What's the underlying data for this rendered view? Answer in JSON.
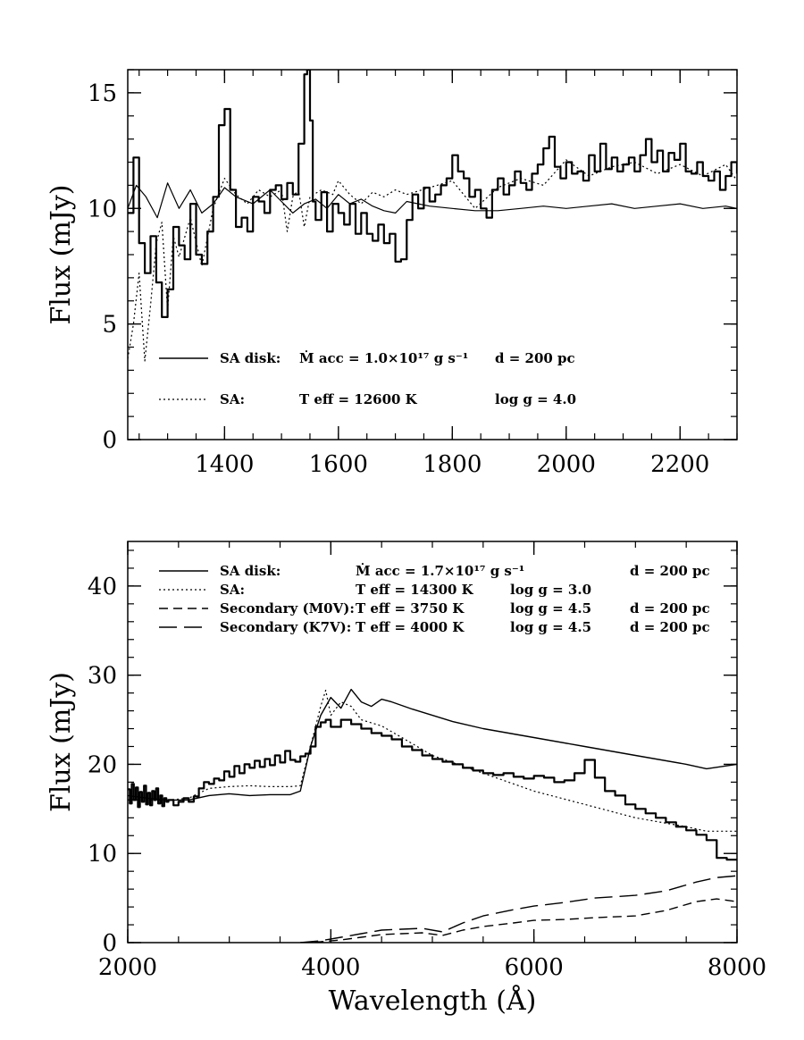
{
  "chart_data": [
    {
      "type": "line",
      "title": "",
      "xlabel": "",
      "ylabel": "Flux (mJy)",
      "xlim": [
        1230,
        2300
      ],
      "ylim": [
        0,
        16
      ],
      "x_ticks": [
        1400,
        1600,
        1800,
        2000,
        2200
      ],
      "y_ticks": [
        0,
        5,
        10,
        15
      ],
      "legend": [
        {
          "line": "solid",
          "label": "SA disk:",
          "param1": "Ṁ acc = 1.0×10¹⁷ g s⁻¹",
          "param2": "d = 200 pc"
        },
        {
          "line": "dotted",
          "label": "SA:",
          "param1": "T eff = 12600 K",
          "param2": "log g = 4.0"
        }
      ],
      "series": [
        {
          "name": "SA disk",
          "style": "solid-smooth",
          "x": [
            1230,
            1245,
            1262,
            1282,
            1300,
            1320,
            1340,
            1360,
            1380,
            1400,
            1420,
            1450,
            1480,
            1500,
            1520,
            1540,
            1560,
            1580,
            1600,
            1620,
            1640,
            1660,
            1680,
            1700,
            1720,
            1760,
            1800,
            1840,
            1880,
            1920,
            1960,
            2000,
            2040,
            2080,
            2120,
            2160,
            2200,
            2240,
            2280,
            2300
          ],
          "y": [
            10.0,
            11.0,
            10.5,
            9.6,
            11.1,
            10.0,
            10.8,
            9.8,
            10.2,
            10.9,
            10.5,
            10.2,
            10.8,
            10.3,
            9.8,
            10.2,
            10.4,
            10.0,
            10.6,
            10.2,
            10.4,
            10.1,
            9.9,
            9.8,
            10.3,
            10.1,
            10.0,
            9.9,
            9.9,
            10.0,
            10.1,
            10.0,
            10.1,
            10.2,
            10.0,
            10.1,
            10.2,
            10.0,
            10.1,
            10.0
          ]
        },
        {
          "name": "SA",
          "style": "dotted",
          "x": [
            1230,
            1240,
            1250,
            1260,
            1270,
            1280,
            1290,
            1300,
            1310,
            1320,
            1340,
            1360,
            1380,
            1400,
            1420,
            1440,
            1460,
            1480,
            1500,
            1510,
            1520,
            1530,
            1540,
            1550,
            1570,
            1590,
            1600,
            1620,
            1640,
            1660,
            1680,
            1700,
            1720,
            1760,
            1800,
            1840,
            1880,
            1920,
            1960,
            2000,
            2040,
            2080,
            2120,
            2160,
            2200,
            2240,
            2280,
            2300
          ],
          "y": [
            3.5,
            5.0,
            7.2,
            3.4,
            5.8,
            8.5,
            9.4,
            5.6,
            8.8,
            7.9,
            9.6,
            7.5,
            10.0,
            11.3,
            10.6,
            10.2,
            10.8,
            10.5,
            10.8,
            9.0,
            10.5,
            10.8,
            9.2,
            10.5,
            10.8,
            10.6,
            11.2,
            10.6,
            10.2,
            10.7,
            10.5,
            10.8,
            10.6,
            10.9,
            11.2,
            10.0,
            10.9,
            11.3,
            11.0,
            12.1,
            11.4,
            11.8,
            12.0,
            11.5,
            11.9,
            11.4,
            11.9,
            11.2
          ]
        },
        {
          "name": "",
          "style": "solid-step",
          "x": [
            1230,
            1240,
            1250,
            1260,
            1270,
            1280,
            1290,
            1300,
            1310,
            1320,
            1330,
            1340,
            1350,
            1360,
            1370,
            1380,
            1390,
            1400,
            1410,
            1420,
            1430,
            1440,
            1450,
            1460,
            1470,
            1480,
            1490,
            1500,
            1510,
            1520,
            1530,
            1540,
            1545,
            1550,
            1555,
            1560,
            1570,
            1580,
            1590,
            1600,
            1610,
            1620,
            1630,
            1640,
            1650,
            1660,
            1670,
            1680,
            1690,
            1700,
            1710,
            1720,
            1730,
            1740,
            1750,
            1760,
            1770,
            1780,
            1790,
            1800,
            1810,
            1820,
            1830,
            1840,
            1850,
            1860,
            1870,
            1880,
            1890,
            1900,
            1910,
            1920,
            1930,
            1940,
            1950,
            1960,
            1970,
            1980,
            1990,
            2000,
            2010,
            2020,
            2030,
            2040,
            2050,
            2060,
            2070,
            2080,
            2090,
            2100,
            2110,
            2120,
            2130,
            2140,
            2150,
            2160,
            2170,
            2180,
            2190,
            2200,
            2210,
            2220,
            2230,
            2240,
            2250,
            2260,
            2270,
            2280,
            2290,
            2300
          ],
          "y": [
            9.8,
            12.2,
            8.5,
            7.2,
            8.8,
            6.8,
            5.3,
            6.5,
            9.2,
            8.4,
            7.8,
            10.2,
            8.0,
            7.6,
            9.0,
            10.5,
            13.6,
            14.3,
            10.8,
            9.2,
            9.6,
            9.0,
            10.5,
            10.3,
            9.8,
            10.8,
            11.0,
            10.4,
            11.1,
            10.6,
            12.8,
            15.8,
            16.0,
            13.8,
            10.3,
            9.5,
            10.7,
            9.0,
            10.2,
            9.8,
            9.3,
            10.2,
            8.9,
            9.8,
            8.9,
            8.6,
            9.3,
            8.5,
            8.9,
            7.7,
            7.8,
            9.5,
            10.6,
            10.0,
            10.9,
            10.3,
            10.6,
            11.0,
            11.3,
            12.3,
            11.6,
            11.3,
            10.5,
            10.8,
            10.0,
            9.6,
            10.8,
            11.3,
            10.6,
            11.0,
            11.6,
            11.1,
            10.8,
            11.5,
            11.9,
            12.6,
            13.1,
            11.8,
            11.3,
            12.0,
            11.5,
            11.6,
            11.2,
            12.3,
            11.6,
            12.8,
            11.7,
            12.2,
            11.6,
            11.9,
            12.2,
            11.6,
            12.3,
            13.0,
            12.0,
            12.5,
            11.6,
            12.4,
            12.1,
            12.8,
            11.6,
            11.5,
            12.0,
            11.4,
            11.2,
            11.6,
            10.8,
            11.4,
            12.0,
            11.5
          ]
        }
      ]
    },
    {
      "type": "line",
      "title": "",
      "xlabel": "Wavelength (Å)",
      "ylabel": "Flux (mJy)",
      "xlim": [
        2000,
        8000
      ],
      "ylim": [
        0,
        45
      ],
      "x_ticks": [
        2000,
        4000,
        6000,
        8000
      ],
      "y_ticks": [
        0,
        10,
        20,
        30,
        40
      ],
      "legend": [
        {
          "line": "solid",
          "label": "SA disk:",
          "param1": "Ṁ acc = 1.7×10¹⁷ g s⁻¹",
          "param2": "",
          "param3": "d = 200 pc"
        },
        {
          "line": "dotted",
          "label": "SA:",
          "param1": "T eff = 14300 K",
          "param2": "log g = 3.0",
          "param3": ""
        },
        {
          "line": "dashed",
          "label": "Secondary (M0V):",
          "param1": "T eff =  3750 K",
          "param2": "log g = 4.5",
          "param3": "d = 200 pc"
        },
        {
          "line": "long-dashed",
          "label": "Secondary (K7V):",
          "param1": "T eff =  4000 K",
          "param2": "log g = 4.5",
          "param3": "d = 200 pc"
        }
      ],
      "series": [
        {
          "name": "SA disk",
          "style": "solid",
          "x": [
            2000,
            2200,
            2400,
            2600,
            2800,
            3000,
            3200,
            3400,
            3600,
            3700,
            3800,
            3900,
            4000,
            4100,
            4200,
            4300,
            4400,
            4500,
            4600,
            4800,
            5000,
            5200,
            5500,
            6000,
            6500,
            7000,
            7500,
            7700,
            8000
          ],
          "y": [
            16.5,
            16.2,
            16.0,
            16.0,
            16.5,
            16.7,
            16.5,
            16.6,
            16.6,
            17.0,
            22.0,
            25.5,
            27.5,
            26.3,
            28.4,
            27.0,
            26.5,
            27.3,
            27.0,
            26.2,
            25.5,
            24.8,
            24.0,
            23.0,
            22.0,
            21.0,
            20.0,
            19.5,
            20.0
          ]
        },
        {
          "name": "SA",
          "style": "dotted",
          "x": [
            2000,
            2200,
            2400,
            2600,
            2800,
            3000,
            3200,
            3400,
            3600,
            3700,
            3800,
            3900,
            3950,
            4000,
            4100,
            4200,
            4300,
            4500,
            4700,
            5000,
            5500,
            6000,
            6500,
            7000,
            7500,
            7700,
            8000
          ],
          "y": [
            16.0,
            16.0,
            16.0,
            16.2,
            17.3,
            17.5,
            17.6,
            17.5,
            17.5,
            17.6,
            22.0,
            26.5,
            28.3,
            25.5,
            27.0,
            26.5,
            25.0,
            24.3,
            23.0,
            21.0,
            19.0,
            17.0,
            15.5,
            14.0,
            13.0,
            12.5,
            12.5
          ]
        },
        {
          "name": "Secondary (M0V)",
          "style": "dashed",
          "x": [
            3700,
            3900,
            4100,
            4300,
            4500,
            4700,
            4900,
            5100,
            5300,
            5500,
            5800,
            6000,
            6300,
            6600,
            7000,
            7300,
            7600,
            7800,
            8000
          ],
          "y": [
            0.0,
            0.1,
            0.3,
            0.6,
            0.9,
            1.0,
            1.1,
            0.8,
            1.4,
            1.8,
            2.2,
            2.5,
            2.6,
            2.8,
            3.0,
            3.6,
            4.6,
            4.9,
            4.6
          ]
        },
        {
          "name": "Secondary (K7V)",
          "style": "long-dashed",
          "x": [
            3700,
            3900,
            4100,
            4300,
            4500,
            4700,
            4900,
            5100,
            5300,
            5500,
            5800,
            6000,
            6300,
            6600,
            7000,
            7300,
            7600,
            7800,
            8000
          ],
          "y": [
            0.0,
            0.2,
            0.6,
            1.0,
            1.4,
            1.5,
            1.6,
            1.2,
            2.2,
            3.0,
            3.7,
            4.1,
            4.5,
            5.0,
            5.3,
            5.8,
            6.8,
            7.3,
            7.5
          ]
        },
        {
          "name": "",
          "style": "solid-step",
          "x": [
            2000,
            2020,
            2040,
            2060,
            2080,
            2100,
            2120,
            2140,
            2160,
            2180,
            2200,
            2220,
            2240,
            2260,
            2280,
            2300,
            2320,
            2340,
            2360,
            2380,
            2400,
            2450,
            2500,
            2550,
            2600,
            2650,
            2700,
            2750,
            2800,
            2850,
            2900,
            2950,
            3000,
            3050,
            3100,
            3150,
            3200,
            3250,
            3300,
            3350,
            3400,
            3450,
            3500,
            3550,
            3600,
            3650,
            3700,
            3750,
            3800,
            3850,
            3900,
            3950,
            4000,
            4100,
            4200,
            4300,
            4400,
            4500,
            4600,
            4700,
            4800,
            4900,
            5000,
            5100,
            5200,
            5300,
            5400,
            5500,
            5600,
            5700,
            5800,
            5900,
            6000,
            6100,
            6200,
            6300,
            6400,
            6500,
            6600,
            6700,
            6800,
            6900,
            7000,
            7100,
            7200,
            7300,
            7400,
            7500,
            7600,
            7700,
            7800,
            7900,
            8000
          ],
          "y": [
            17.2,
            15.6,
            17.8,
            16.0,
            17.4,
            15.2,
            16.9,
            15.8,
            17.6,
            15.5,
            16.8,
            15.4,
            17.0,
            16.0,
            17.3,
            15.6,
            16.5,
            15.3,
            16.2,
            15.8,
            16.0,
            15.4,
            15.8,
            16.2,
            15.8,
            16.4,
            17.3,
            18.0,
            17.8,
            18.4,
            18.2,
            19.2,
            18.6,
            19.8,
            19.0,
            20.0,
            19.6,
            20.4,
            19.7,
            20.6,
            19.9,
            21.0,
            20.2,
            21.5,
            20.5,
            20.3,
            20.9,
            21.2,
            22.0,
            24.2,
            24.7,
            25.0,
            24.2,
            25.0,
            24.5,
            24.0,
            23.5,
            23.2,
            22.8,
            22.0,
            21.6,
            21.0,
            20.6,
            20.3,
            20.0,
            19.6,
            19.3,
            19.0,
            18.8,
            19.0,
            18.6,
            18.4,
            18.7,
            18.5,
            18.0,
            18.2,
            19.0,
            20.5,
            18.5,
            17.0,
            16.5,
            15.5,
            15.0,
            14.5,
            14.0,
            13.5,
            13.0,
            12.6,
            12.1,
            11.5,
            9.5,
            9.3,
            9.3
          ]
        }
      ]
    }
  ]
}
